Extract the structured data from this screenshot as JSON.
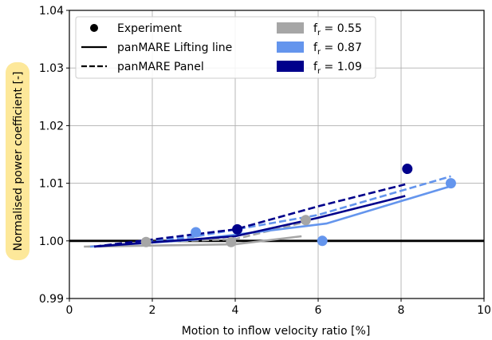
{
  "chart_data": {
    "type": "line",
    "xlabel": "Motion to inflow velocity ratio [%]",
    "ylabel": "Normalised power coefficient [-]",
    "xlim": [
      0,
      10
    ],
    "ylim": [
      0.99,
      1.04
    ],
    "x_ticks": [
      0,
      2,
      4,
      6,
      8,
      10
    ],
    "y_ticks": [
      0.99,
      1.0,
      1.01,
      1.02,
      1.03,
      1.04
    ],
    "y_tick_labels": [
      "0.99",
      "1.00",
      "1.01",
      "1.02",
      "1.03",
      "1.04"
    ],
    "grid": true,
    "reference_line": 1.0,
    "legend_placement": "top-left",
    "legend": {
      "styles": [
        {
          "label": "Experiment",
          "kind": "marker"
        },
        {
          "label": "panMARE Lifting line",
          "kind": "solid"
        },
        {
          "label": "panMARE Panel",
          "kind": "dashed"
        }
      ],
      "colors": [
        {
          "symbol": "f",
          "sub": "r",
          "text": " = 0.55",
          "color": "#a6a6a6"
        },
        {
          "symbol": "f",
          "sub": "r",
          "text": " = 0.87",
          "color": "#6495ed"
        },
        {
          "symbol": "f",
          "sub": "r",
          "text": " = 1.09",
          "color": "#00008b"
        }
      ]
    },
    "series": [
      {
        "color": "#a6a6a6",
        "experiment": [
          [
            1.85,
            0.9998
          ],
          [
            3.9,
            0.9998
          ],
          [
            5.7,
            1.0036
          ]
        ],
        "lifting_line": [
          [
            0.35,
            0.999
          ],
          [
            4.0,
            0.9994
          ],
          [
            5.6,
            1.0008
          ]
        ],
        "panel": [
          [
            0.45,
            0.999
          ],
          [
            2.0,
            0.9998
          ],
          [
            4.0,
            1.0003
          ],
          [
            5.7,
            1.0033
          ]
        ]
      },
      {
        "color": "#6495ed",
        "experiment": [
          [
            3.05,
            1.0015
          ],
          [
            6.1,
            1.0
          ],
          [
            9.2,
            1.01
          ]
        ],
        "lifting_line": [
          [
            0.5,
            0.999
          ],
          [
            3.0,
            1.0002
          ],
          [
            6.2,
            1.003
          ],
          [
            9.2,
            1.0095
          ]
        ],
        "panel": [
          [
            0.6,
            0.999
          ],
          [
            3.0,
            1.0007
          ],
          [
            6.0,
            1.0045
          ],
          [
            9.2,
            1.0112
          ]
        ]
      },
      {
        "color": "#00008b",
        "experiment": [
          [
            4.05,
            1.002
          ],
          [
            8.15,
            1.0125
          ]
        ],
        "lifting_line": [
          [
            0.6,
            0.999
          ],
          [
            4.0,
            1.0008
          ],
          [
            6.0,
            1.004
          ],
          [
            8.1,
            1.0078
          ]
        ],
        "panel": [
          [
            0.6,
            0.999
          ],
          [
            4.0,
            1.002
          ],
          [
            6.0,
            1.006
          ],
          [
            8.1,
            1.0098
          ]
        ]
      }
    ]
  }
}
